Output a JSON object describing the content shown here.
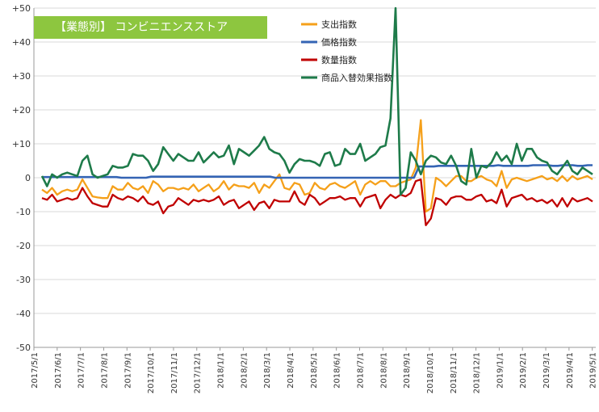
{
  "chart_data": {
    "type": "line",
    "title": "【業態別】 コンビニエンスストア",
    "xlabel": "",
    "ylabel": "",
    "ylim": [
      -50,
      50
    ],
    "yticks": [
      "+50",
      "+40",
      "+30",
      "+20",
      "+10",
      "0",
      "-10",
      "-20",
      "-30",
      "-40",
      "-50"
    ],
    "grid": "horizontal",
    "legend": "top-center",
    "x_tick_labels": [
      "2017/5/1",
      "2017/6/1",
      "2017/7/1",
      "2017/8/1",
      "2017/9/1",
      "2017/10/1",
      "2017/11/1",
      "2017/12/1",
      "2018/1/1",
      "2018/2/1",
      "2018/3/1",
      "2018/4/1",
      "2018/5/1",
      "2018/6/1",
      "2018/7/1",
      "2018/8/1",
      "2018/9/1",
      "2018/10/1",
      "2018/11/1",
      "2018/12/1",
      "2019/1/1",
      "2019/2/1",
      "2019/3/1",
      "2019/4/1",
      "2019/5/1"
    ],
    "series": [
      {
        "name": "支出指数",
        "color": "#f5a01a",
        "values": [
          -3.5,
          -4.5,
          -3,
          -5,
          -4,
          -3.5,
          -4,
          -3.5,
          -0.5,
          -3,
          -5.5,
          -5.8,
          -6,
          -6,
          -2.5,
          -3.5,
          -3.5,
          -1.5,
          -3,
          -3.5,
          -2.5,
          -4.5,
          -1,
          -2,
          -4,
          -3,
          -3,
          -3.5,
          -3,
          -3.5,
          -2,
          -4,
          -3,
          -2,
          -4,
          -3,
          -1,
          -3.5,
          -2,
          -2.5,
          -2.5,
          -3,
          -1.5,
          -4.5,
          -2,
          -3,
          -1,
          1,
          -3,
          -3.5,
          -1.5,
          -2,
          -5,
          -4.5,
          -1.5,
          -3,
          -3.5,
          -2,
          -1.5,
          -2.5,
          -3,
          -2,
          -1,
          -5,
          -2,
          -1,
          -2,
          -1,
          -1,
          -2.5,
          -2.5,
          -1.5,
          -1,
          -0.5,
          3,
          17,
          -10,
          -9,
          0,
          -1,
          -2.5,
          -1,
          0.5,
          0.5,
          -1,
          -1,
          0,
          0.5,
          -0.5,
          -1,
          -2.5,
          2,
          -3,
          -0.5,
          0,
          -0.5,
          -1,
          -0.5,
          0,
          0.5,
          -0.5,
          0,
          -1,
          0.5,
          -1,
          0.5,
          -0.5,
          0,
          0.5,
          -0.5
        ],
        "stroke_width": 2.3
      },
      {
        "name": "価格指数",
        "color": "#3464b4",
        "values": [
          0.2,
          0.2,
          0.2,
          0.2,
          0.2,
          0.2,
          0.2,
          0.2,
          0.2,
          0.2,
          0.2,
          0.2,
          0.2,
          0.2,
          0.2,
          0.2,
          0,
          0,
          0,
          0,
          0,
          0,
          0.3,
          0.3,
          0.3,
          0.3,
          0.3,
          0.3,
          0.3,
          0.3,
          0.3,
          0.3,
          0.3,
          0.3,
          0.3,
          0.3,
          0.3,
          0.3,
          0.3,
          0.3,
          0.3,
          0.3,
          0.3,
          0.3,
          0.3,
          0.3,
          0.3,
          0,
          0,
          0,
          0,
          0,
          0,
          0,
          0,
          0,
          0,
          0,
          0,
          0,
          0,
          0,
          0,
          0,
          0,
          0,
          0,
          0,
          0,
          0,
          0,
          0,
          0,
          0,
          0,
          0,
          3.3,
          3.3,
          3.3,
          3.3,
          3.5,
          3.5,
          3.5,
          3.5,
          3.5,
          3.5,
          3.5,
          3.5,
          3.5,
          3.5,
          3.5,
          3.5,
          3.7,
          3.5,
          3.5,
          3.5,
          3.5,
          3.5,
          3.5,
          3.7,
          3.7,
          3.7,
          3.7,
          3.5,
          3.5,
          3.7,
          3.7,
          3.7,
          3.5,
          3.5,
          3.7,
          3.7
        ],
        "stroke_width": 2.6
      },
      {
        "name": "数量指数",
        "color": "#c00000",
        "values": [
          -6,
          -6.5,
          -5,
          -7,
          -6.5,
          -6,
          -6.5,
          -6,
          -3,
          -5.5,
          -7.5,
          -8,
          -8.5,
          -8.5,
          -5,
          -6,
          -6.5,
          -5.5,
          -6,
          -7,
          -5.5,
          -7.5,
          -8,
          -7,
          -10.5,
          -8.5,
          -8,
          -6,
          -7,
          -8,
          -6.5,
          -7,
          -6.5,
          -7,
          -6.5,
          -5.5,
          -8,
          -7,
          -6.5,
          -9,
          -8,
          -7,
          -9.5,
          -7.5,
          -7,
          -9,
          -6.5,
          -7,
          -7,
          -7,
          -4,
          -7,
          -8,
          -5,
          -6,
          -8,
          -7,
          -6,
          -6,
          -5.5,
          -6.5,
          -6,
          -6,
          -8.5,
          -6,
          -5.5,
          -5,
          -9,
          -6.5,
          -5,
          -6,
          -5,
          -5.5,
          -4.5,
          -1,
          -0.5,
          -14,
          -12,
          -6,
          -6.5,
          -8,
          -6,
          -5.5,
          -5.5,
          -6.5,
          -6.5,
          -5.5,
          -5,
          -7,
          -6.5,
          -7.5,
          -3.5,
          -8.5,
          -6,
          -5.5,
          -5,
          -6.5,
          -6,
          -7,
          -6.5,
          -7.5,
          -6.5,
          -8.5,
          -6,
          -8.5,
          -6,
          -7,
          -6.5,
          -6,
          -7
        ],
        "stroke_width": 2.3
      },
      {
        "name": "商品入替効果指数",
        "color": "#1e7b4a",
        "values": [
          0.5,
          -2.5,
          1,
          0,
          1,
          1.5,
          1,
          0.5,
          5,
          6.5,
          1,
          0,
          0.5,
          1,
          3.5,
          3,
          3,
          3.5,
          7,
          6.5,
          6.5,
          5,
          2,
          4,
          9,
          7,
          5,
          7,
          6,
          5,
          5,
          7.5,
          4.5,
          6,
          7.5,
          6,
          6.5,
          9.5,
          4,
          8.5,
          7.5,
          6.5,
          8,
          9.5,
          12,
          8.5,
          7.5,
          7,
          5,
          1.5,
          4,
          5.5,
          5,
          5,
          4.5,
          3.5,
          7,
          7.5,
          3.5,
          4,
          8.5,
          7,
          7,
          10,
          5,
          6,
          7,
          9,
          9.5,
          17.5,
          50,
          -5,
          -3,
          7.5,
          5,
          1,
          5,
          6.5,
          6,
          4.5,
          4,
          6.5,
          3.5,
          -1,
          -2,
          8.5,
          0,
          3.5,
          3,
          4.5,
          7.5,
          5,
          6.5,
          4,
          10,
          5,
          8.5,
          8.5,
          6,
          5,
          4.5,
          2,
          1,
          3,
          5,
          2,
          1,
          3,
          2,
          1
        ],
        "stroke_width": 2.6
      }
    ]
  }
}
